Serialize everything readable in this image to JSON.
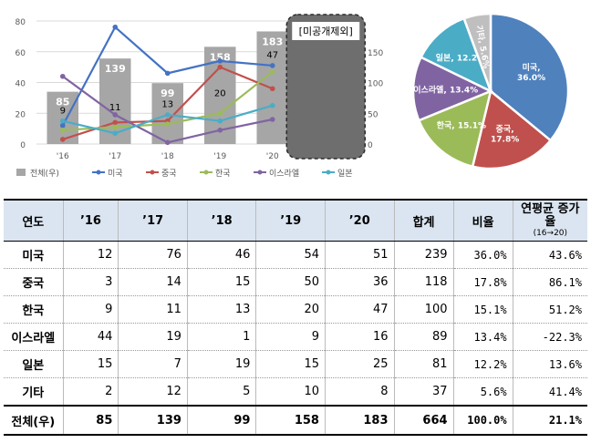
{
  "chart_data": [
    {
      "type": "bar+line",
      "title": "",
      "categories": [
        "'16",
        "'17",
        "'18",
        "'19",
        "'20"
      ],
      "excluded_category_label": "[미공개제외]",
      "y_left_ticks": [
        0,
        20,
        40,
        60,
        80
      ],
      "y_right_ticks": [
        0,
        50,
        100,
        150
      ],
      "ylim_left": [
        0,
        80
      ],
      "ylim_right": [
        0,
        200
      ],
      "bar_series": {
        "name": "전체(우)",
        "axis": "right",
        "color": "#a6a6a6",
        "values": [
          85,
          139,
          99,
          158,
          183
        ],
        "labels": [
          "85",
          "139",
          "99",
          "158",
          "183"
        ]
      },
      "line_series": [
        {
          "name": "미국",
          "color": "#4472c4",
          "values": [
            12,
            76,
            46,
            54,
            51
          ]
        },
        {
          "name": "중국",
          "color": "#c0504d",
          "values": [
            3,
            14,
            15,
            50,
            36
          ]
        },
        {
          "name": "한국",
          "color": "#9bbb59",
          "values": [
            9,
            11,
            13,
            20,
            47
          ]
        },
        {
          "name": "이스라엘",
          "color": "#8064a2",
          "values": [
            44,
            19,
            1,
            9,
            16
          ]
        },
        {
          "name": "일본",
          "color": "#4bacc6",
          "values": [
            15,
            7,
            19,
            15,
            25
          ]
        }
      ],
      "line_labels": [
        {
          "text": "9",
          "color": "#000000",
          "x": "'16",
          "y": 20
        },
        {
          "text": "11",
          "color": "#000000",
          "x": "'17",
          "y": 22
        },
        {
          "text": "13",
          "color": "#000000",
          "x": "'18",
          "y": 24
        },
        {
          "text": "20",
          "color": "#000000",
          "x": "'19",
          "y": 31
        },
        {
          "text": "47",
          "color": "#000000",
          "x": "'20",
          "y": 56
        }
      ],
      "legend": [
        "전체(우)",
        "미국",
        "중국",
        "한국",
        "이스라엘",
        "일본"
      ],
      "legend_position": "bottom"
    },
    {
      "type": "pie",
      "slices": [
        {
          "label": "미국,\n36.0%",
          "value": 36.0,
          "color": "#4f81bd"
        },
        {
          "label": "중국,\n17.8%",
          "value": 17.8,
          "color": "#c0504d"
        },
        {
          "label": "한국, 15.1%",
          "value": 15.1,
          "color": "#9bbb59"
        },
        {
          "label": "이스라엘, 13.4%",
          "value": 13.4,
          "color": "#8064a2"
        },
        {
          "label": "일본, 12.2%",
          "value": 12.2,
          "color": "#4bacc6"
        },
        {
          "label": "기타, 5.6%",
          "value": 5.6,
          "color": "#bfbfbf"
        }
      ]
    }
  ],
  "table": {
    "headers": [
      "연도",
      "’16",
      "’17",
      "’18",
      "’19",
      "’20",
      "합계",
      "비율"
    ],
    "growth_header": "연평균 증가율",
    "growth_sub": "(16→20)",
    "rows": [
      {
        "name": "미국",
        "cells": [
          "12",
          "76",
          "46",
          "54",
          "51",
          "239"
        ],
        "pct": "36.0%",
        "growth": "43.6%"
      },
      {
        "name": "중국",
        "cells": [
          "3",
          "14",
          "15",
          "50",
          "36",
          "118"
        ],
        "pct": "17.8%",
        "growth": "86.1%"
      },
      {
        "name": "한국",
        "cells": [
          "9",
          "11",
          "13",
          "20",
          "47",
          "100"
        ],
        "pct": "15.1%",
        "growth": "51.2%"
      },
      {
        "name": "이스라엘",
        "cells": [
          "44",
          "19",
          "1",
          "9",
          "16",
          "89"
        ],
        "pct": "13.4%",
        "growth": "-22.3%"
      },
      {
        "name": "일본",
        "cells": [
          "15",
          "7",
          "19",
          "15",
          "25",
          "81"
        ],
        "pct": "12.2%",
        "growth": "13.6%"
      },
      {
        "name": "기타",
        "cells": [
          "2",
          "12",
          "5",
          "10",
          "8",
          "37"
        ],
        "pct": "5.6%",
        "growth": "41.4%"
      }
    ],
    "total": {
      "name": "전체(우)",
      "cells": [
        "85",
        "139",
        "99",
        "158",
        "183",
        "664"
      ],
      "pct": "100.0%",
      "growth": "21.1%"
    }
  }
}
